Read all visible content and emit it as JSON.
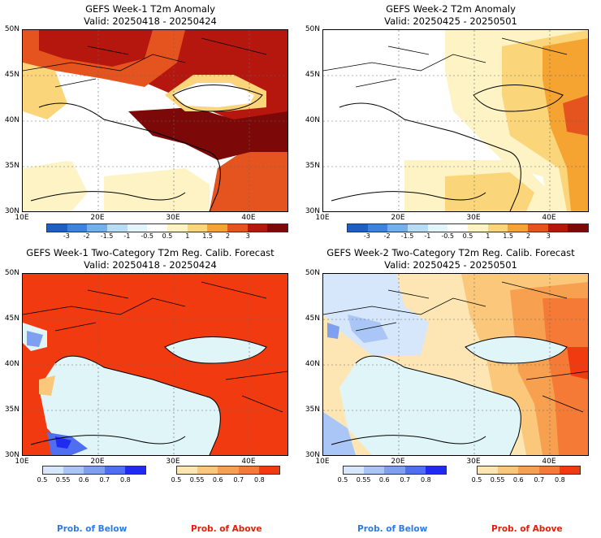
{
  "panels": [
    {
      "title": "GEFS Week-1 T2m Anomaly",
      "valid": "Valid: 20250418 - 20250424"
    },
    {
      "title": "GEFS Week-2 T2m Anomaly",
      "valid": "Valid: 20250425 - 20250501"
    },
    {
      "title": "GEFS Week-1 Two-Category T2m Reg. Calib. Forecast",
      "valid": "Valid: 20250418 - 20250424"
    },
    {
      "title": "GEFS Week-2 Two-Category T2m Reg. Calib. Forecast",
      "valid": "Valid: 20250425 - 20250501"
    }
  ],
  "axes": {
    "lat_labels": [
      "50N",
      "45N",
      "40N",
      "35N",
      "30N"
    ],
    "lon_labels": [
      "10E",
      "20E",
      "30E",
      "40E"
    ]
  },
  "anomaly_scale": {
    "labels": [
      "-3",
      "-2",
      "-1.5",
      "-1",
      "-0.5",
      "0.5",
      "1",
      "1.5",
      "2",
      "3"
    ],
    "colors": [
      "#1f5fc4",
      "#3f82dc",
      "#75aee8",
      "#b7dcf4",
      "#e4f4fb",
      "#ffffff",
      "#fdf3c4",
      "#fbd57a",
      "#f5a431",
      "#e5541e",
      "#b5160e",
      "#7c0808"
    ]
  },
  "prob_scale": {
    "labels": [
      "0.5",
      "0.55",
      "0.6",
      "0.7",
      "0.8"
    ],
    "below_colors": [
      "#d6e6fb",
      "#aac6f7",
      "#7f9ff1",
      "#4f6ff0",
      "#1f2bf0"
    ],
    "above_colors": [
      "#fde6b4",
      "#fbc77a",
      "#f7a050",
      "#f57a35",
      "#f23a10"
    ],
    "below_label": "Prob. of Below",
    "above_label": "Prob. of Above",
    "below_color": "#2f7be0",
    "above_color": "#e0200a"
  }
}
